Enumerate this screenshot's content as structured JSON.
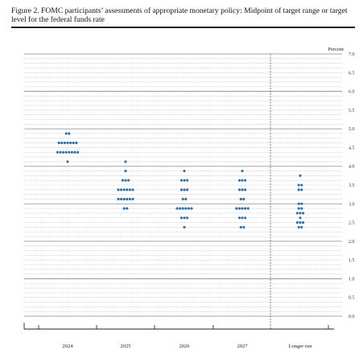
{
  "figure": {
    "title": "Figure 2.  FOMC participants’ assessments of appropriate monetary policy:  Midpoint of target range or target level for the federal funds rate"
  },
  "chart_data": {
    "type": "scatter",
    "title": "Figure 2.  FOMC participants’ assessments of appropriate monetary policy:  Midpoint of target range or target level for the federal funds rate",
    "ylabel": "Percent",
    "xlabel": "",
    "ylim": [
      0,
      7.0
    ],
    "ytick_values": [
      0.0,
      0.5,
      1.0,
      1.5,
      2.0,
      2.5,
      3.0,
      3.5,
      4.0,
      4.5,
      5.0,
      5.5,
      6.0,
      6.5,
      7.0
    ],
    "ytick_labels": [
      "0.0",
      "0.5",
      "1.0",
      "1.5",
      "2.0",
      "2.5",
      "3.0",
      "3.5",
      "4.0",
      "4.5",
      "5.0",
      "5.5",
      "6.0",
      "6.5",
      "7.0"
    ],
    "categories": [
      "2024",
      "2025",
      "2026",
      "2027",
      "Longer run"
    ],
    "dot_color": "#2e6da4",
    "grid": "horizontal dotted at every 0.125, solid at every whole percent",
    "series": [
      {
        "category": "2024",
        "points": [
          {
            "y": 4.875,
            "count": 2
          },
          {
            "y": 4.625,
            "count": 7
          },
          {
            "y": 4.375,
            "count": 8
          },
          {
            "y": 4.125,
            "count": 1
          }
        ]
      },
      {
        "category": "2025",
        "points": [
          {
            "y": 4.125,
            "count": 1
          },
          {
            "y": 3.875,
            "count": 1
          },
          {
            "y": 3.625,
            "count": 3
          },
          {
            "y": 3.375,
            "count": 6
          },
          {
            "y": 3.125,
            "count": 6
          },
          {
            "y": 2.875,
            "count": 2
          }
        ]
      },
      {
        "category": "2026",
        "points": [
          {
            "y": 3.875,
            "count": 1
          },
          {
            "y": 3.625,
            "count": 3
          },
          {
            "y": 3.375,
            "count": 3
          },
          {
            "y": 3.125,
            "count": 2
          },
          {
            "y": 2.875,
            "count": 6
          },
          {
            "y": 2.625,
            "count": 3
          },
          {
            "y": 2.375,
            "count": 1
          }
        ]
      },
      {
        "category": "2027",
        "points": [
          {
            "y": 3.875,
            "count": 1
          },
          {
            "y": 3.625,
            "count": 3
          },
          {
            "y": 3.375,
            "count": 3
          },
          {
            "y": 3.125,
            "count": 2
          },
          {
            "y": 2.875,
            "count": 5
          },
          {
            "y": 2.625,
            "count": 3
          },
          {
            "y": 2.375,
            "count": 2
          }
        ]
      },
      {
        "category": "Longer run",
        "points": [
          {
            "y": 3.75,
            "count": 1
          },
          {
            "y": 3.5,
            "count": 2
          },
          {
            "y": 3.375,
            "count": 2
          },
          {
            "y": 3.0,
            "count": 2
          },
          {
            "y": 2.875,
            "count": 2
          },
          {
            "y": 2.75,
            "count": 3
          },
          {
            "y": 2.625,
            "count": 1
          },
          {
            "y": 2.5,
            "count": 3
          },
          {
            "y": 2.375,
            "count": 2
          }
        ]
      }
    ]
  }
}
